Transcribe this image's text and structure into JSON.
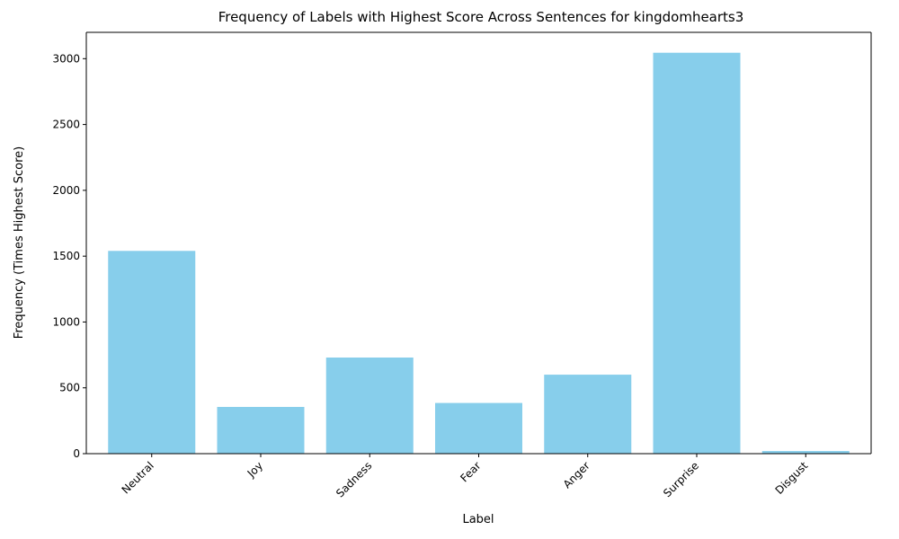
{
  "chart_data": {
    "type": "bar",
    "title": "Frequency of Labels with Highest Score Across Sentences for kingdomhearts3",
    "xlabel": "Label",
    "ylabel": "Frequency (Times Highest Score)",
    "categories": [
      "Neutral",
      "Joy",
      "Sadness",
      "Fear",
      "Anger",
      "Surprise",
      "Disgust"
    ],
    "values": [
      1540,
      355,
      730,
      385,
      600,
      3045,
      20
    ],
    "ylim": [
      0,
      3200
    ],
    "yticks": [
      0,
      500,
      1000,
      1500,
      2000,
      2500,
      3000
    ],
    "ytick_labels": [
      "0",
      "500",
      "1000",
      "1500",
      "2000",
      "2500",
      "3000"
    ],
    "bar_color": "#87ceeb",
    "grid": false,
    "legend": "none",
    "xtick_rotation": 45
  }
}
